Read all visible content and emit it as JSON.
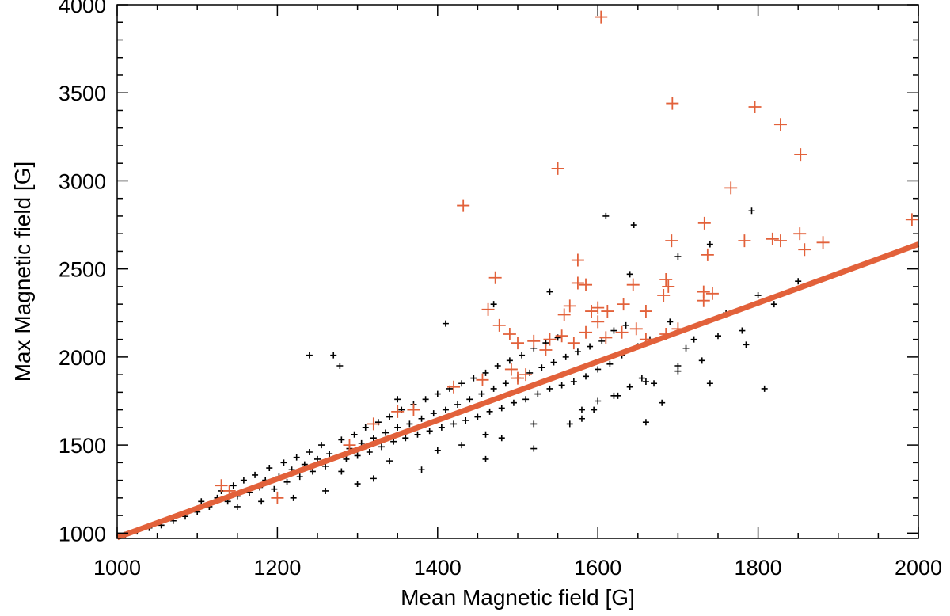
{
  "chart_data": {
    "type": "scatter",
    "title": "",
    "xlabel": "Mean Magnetic field [G]",
    "ylabel": "Max Magnetic field [G]",
    "xlim": [
      1000,
      2000
    ],
    "ylim": [
      970,
      4000
    ],
    "xticks": [
      1000,
      1200,
      1400,
      1600,
      1800,
      2000
    ],
    "yticks": [
      1000,
      1500,
      2000,
      2500,
      3000,
      3500,
      4000
    ],
    "grid": false,
    "legend": "none",
    "colors": {
      "black_series": "#000000",
      "orange_series": "#e2613a",
      "fit_line": "#e2613a"
    },
    "fit_line": {
      "x": [
        1000,
        2000
      ],
      "y": [
        975,
        2640
      ]
    },
    "series": [
      {
        "marker": "small-plus",
        "color": "#000000",
        "points": [
          [
            1010,
            990
          ],
          [
            1025,
            1010
          ],
          [
            1040,
            1030
          ],
          [
            1055,
            1045
          ],
          [
            1070,
            1070
          ],
          [
            1085,
            1095
          ],
          [
            1100,
            1120
          ],
          [
            1105,
            1180
          ],
          [
            1115,
            1150
          ],
          [
            1125,
            1200
          ],
          [
            1130,
            1240
          ],
          [
            1138,
            1180
          ],
          [
            1145,
            1270
          ],
          [
            1150,
            1210
          ],
          [
            1158,
            1300
          ],
          [
            1165,
            1230
          ],
          [
            1172,
            1330
          ],
          [
            1178,
            1260
          ],
          [
            1185,
            1300
          ],
          [
            1190,
            1370
          ],
          [
            1196,
            1250
          ],
          [
            1202,
            1320
          ],
          [
            1208,
            1400
          ],
          [
            1212,
            1290
          ],
          [
            1218,
            1360
          ],
          [
            1224,
            1430
          ],
          [
            1228,
            1320
          ],
          [
            1234,
            1390
          ],
          [
            1240,
            1460
          ],
          [
            1244,
            1350
          ],
          [
            1250,
            1420
          ],
          [
            1255,
            1500
          ],
          [
            1260,
            1380
          ],
          [
            1265,
            1450
          ],
          [
            1270,
            2010
          ],
          [
            1278,
            1950
          ],
          [
            1280,
            1530
          ],
          [
            1286,
            1420
          ],
          [
            1290,
            1480
          ],
          [
            1296,
            1560
          ],
          [
            1300,
            1440
          ],
          [
            1305,
            1510
          ],
          [
            1310,
            1600
          ],
          [
            1315,
            1460
          ],
          [
            1320,
            1540
          ],
          [
            1326,
            1630
          ],
          [
            1330,
            1490
          ],
          [
            1335,
            1570
          ],
          [
            1340,
            1660
          ],
          [
            1345,
            1520
          ],
          [
            1350,
            1600
          ],
          [
            1355,
            1700
          ],
          [
            1360,
            1540
          ],
          [
            1365,
            1620
          ],
          [
            1370,
            1730
          ],
          [
            1375,
            1560
          ],
          [
            1380,
            1650
          ],
          [
            1385,
            1760
          ],
          [
            1390,
            1580
          ],
          [
            1395,
            1680
          ],
          [
            1400,
            1790
          ],
          [
            1405,
            1600
          ],
          [
            1410,
            1700
          ],
          [
            1415,
            1820
          ],
          [
            1420,
            1620
          ],
          [
            1425,
            1730
          ],
          [
            1430,
            1850
          ],
          [
            1435,
            1640
          ],
          [
            1440,
            1760
          ],
          [
            1445,
            1880
          ],
          [
            1450,
            1660
          ],
          [
            1455,
            1790
          ],
          [
            1460,
            1910
          ],
          [
            1465,
            1690
          ],
          [
            1470,
            1820
          ],
          [
            1475,
            1950
          ],
          [
            1480,
            1710
          ],
          [
            1485,
            1850
          ],
          [
            1490,
            1980
          ],
          [
            1495,
            1740
          ],
          [
            1500,
            1880
          ],
          [
            1505,
            2010
          ],
          [
            1510,
            1760
          ],
          [
            1515,
            1910
          ],
          [
            1520,
            2050
          ],
          [
            1525,
            1790
          ],
          [
            1530,
            1940
          ],
          [
            1535,
            2080
          ],
          [
            1540,
            1820
          ],
          [
            1545,
            1970
          ],
          [
            1550,
            2110
          ],
          [
            1555,
            1840
          ],
          [
            1560,
            2000
          ],
          [
            1565,
            1620
          ],
          [
            1570,
            1860
          ],
          [
            1575,
            2030
          ],
          [
            1580,
            1650
          ],
          [
            1585,
            1890
          ],
          [
            1590,
            2060
          ],
          [
            1595,
            1700
          ],
          [
            1600,
            1930
          ],
          [
            1605,
            2090
          ],
          [
            1610,
            2800
          ],
          [
            1615,
            1960
          ],
          [
            1620,
            2150
          ],
          [
            1625,
            1780
          ],
          [
            1630,
            2010
          ],
          [
            1635,
            2180
          ],
          [
            1640,
            1830
          ],
          [
            1645,
            2750
          ],
          [
            1650,
            2060
          ],
          [
            1655,
            1880
          ],
          [
            1660,
            1630
          ],
          [
            1665,
            2100
          ],
          [
            1670,
            1850
          ],
          [
            1680,
            1740
          ],
          [
            1690,
            2200
          ],
          [
            1700,
            1950
          ],
          [
            1710,
            2050
          ],
          [
            1720,
            2100
          ],
          [
            1740,
            1850
          ],
          [
            1750,
            2120
          ],
          [
            1760,
            2250
          ],
          [
            1780,
            2150
          ],
          [
            1785,
            2070
          ],
          [
            1792,
            2830
          ],
          [
            1800,
            2350
          ],
          [
            1808,
            1820
          ],
          [
            1820,
            2300
          ],
          [
            1850,
            2430
          ],
          [
            1240,
            2010
          ],
          [
            1410,
            2190
          ],
          [
            1470,
            2300
          ],
          [
            1540,
            2370
          ],
          [
            1640,
            2470
          ],
          [
            1700,
            2570
          ],
          [
            1740,
            2640
          ],
          [
            1350,
            1760
          ],
          [
            1430,
            1500
          ],
          [
            1480,
            1540
          ],
          [
            1600,
            1750
          ],
          [
            1300,
            1280
          ],
          [
            1220,
            1200
          ],
          [
            1180,
            1180
          ],
          [
            1150,
            1150
          ],
          [
            1260,
            1240
          ],
          [
            1320,
            1310
          ],
          [
            1380,
            1360
          ],
          [
            1460,
            1420
          ],
          [
            1520,
            1480
          ],
          [
            1280,
            1350
          ],
          [
            1340,
            1410
          ],
          [
            1400,
            1470
          ],
          [
            1460,
            1560
          ],
          [
            1520,
            1620
          ],
          [
            1580,
            1700
          ],
          [
            1620,
            1780
          ],
          [
            1660,
            1860
          ],
          [
            1700,
            1920
          ],
          [
            1730,
            1980
          ]
        ]
      },
      {
        "marker": "large-plus",
        "color": "#e2613a",
        "points": [
          [
            1604,
            3930
          ],
          [
            1693,
            3440
          ],
          [
            1796,
            3420
          ],
          [
            1828,
            3320
          ],
          [
            1550,
            3070
          ],
          [
            1853,
            3150
          ],
          [
            1766,
            2960
          ],
          [
            1432,
            2860
          ],
          [
            1992,
            2780
          ],
          [
            1733,
            2760
          ],
          [
            1692,
            2660
          ],
          [
            1783,
            2660
          ],
          [
            1818,
            2670
          ],
          [
            1828,
            2660
          ],
          [
            1852,
            2700
          ],
          [
            1858,
            2610
          ],
          [
            1881,
            2650
          ],
          [
            1737,
            2580
          ],
          [
            1575,
            2550
          ],
          [
            1472,
            2450
          ],
          [
            1575,
            2420
          ],
          [
            1585,
            2410
          ],
          [
            1644,
            2410
          ],
          [
            1685,
            2440
          ],
          [
            1688,
            2400
          ],
          [
            1732,
            2370
          ],
          [
            1732,
            2320
          ],
          [
            1743,
            2360
          ],
          [
            1463,
            2270
          ],
          [
            1558,
            2240
          ],
          [
            1565,
            2290
          ],
          [
            1592,
            2260
          ],
          [
            1600,
            2280
          ],
          [
            1612,
            2260
          ],
          [
            1632,
            2300
          ],
          [
            1660,
            2260
          ],
          [
            1682,
            2350
          ],
          [
            1477,
            2180
          ],
          [
            1490,
            2130
          ],
          [
            1500,
            2080
          ],
          [
            1520,
            2090
          ],
          [
            1540,
            2100
          ],
          [
            1555,
            2120
          ],
          [
            1570,
            2080
          ],
          [
            1585,
            2140
          ],
          [
            1610,
            2110
          ],
          [
            1630,
            2140
          ],
          [
            1648,
            2160
          ],
          [
            1660,
            2100
          ],
          [
            1685,
            2130
          ],
          [
            1492,
            1930
          ],
          [
            1500,
            1880
          ],
          [
            1510,
            1900
          ],
          [
            1456,
            1870
          ],
          [
            1420,
            1830
          ],
          [
            1370,
            1700
          ],
          [
            1350,
            1690
          ],
          [
            1320,
            1620
          ],
          [
            1290,
            1500
          ],
          [
            1200,
            1200
          ],
          [
            1140,
            1240
          ],
          [
            1130,
            1270
          ],
          [
            1535,
            2040
          ],
          [
            1600,
            2200
          ],
          [
            1700,
            2160
          ]
        ]
      }
    ]
  }
}
